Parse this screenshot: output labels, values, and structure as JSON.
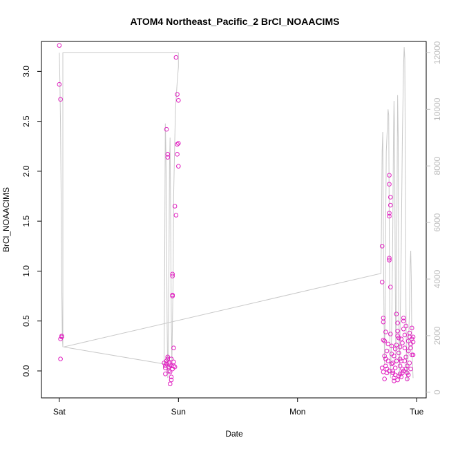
{
  "chart_data": {
    "type": "scatter",
    "title": "ATOM4 Northeast_Pacific_2 BrCl_NOAACIMS",
    "xlabel": "Date",
    "ylabel": "BrCl_NOAACIMS",
    "x_ticks": [
      {
        "day": 0,
        "label": "Sat"
      },
      {
        "day": 1,
        "label": "Sun"
      },
      {
        "day": 2,
        "label": "Mon"
      },
      {
        "day": 3,
        "label": "Tue"
      }
    ],
    "xlim_days": [
      -0.15,
      3.08
    ],
    "ylim": [
      -0.27,
      3.3
    ],
    "y_ticks": [
      0.0,
      0.5,
      1.0,
      1.5,
      2.0,
      2.5,
      3.0
    ],
    "y_tick_labels": [
      "0.0",
      "0.5",
      "1.0",
      "1.5",
      "2.0",
      "2.5",
      "3.0"
    ],
    "y2lim": [
      -200,
      12400
    ],
    "y2_ticks": [
      0,
      2000,
      4000,
      6000,
      8000,
      10000,
      12000
    ],
    "y2_tick_labels": [
      "0",
      "2000",
      "4000",
      "6000",
      "8000",
      "10000",
      "12000"
    ],
    "grid": false,
    "colors": {
      "points": "#e020c0",
      "altitude_line": "#c8c8c8",
      "right_axis": "#bdbdbd"
    },
    "series": [
      {
        "points": [
          [
            0.0,
            3.26
          ],
          [
            0.0,
            2.87
          ],
          [
            0.01,
            2.72
          ],
          [
            0.02,
            0.35
          ],
          [
            0.02,
            0.34
          ],
          [
            0.01,
            0.32
          ],
          [
            0.01,
            0.12
          ],
          [
            0.9,
            2.42
          ],
          [
            0.91,
            2.17
          ],
          [
            0.91,
            2.14
          ],
          [
            0.88,
            0.08
          ],
          [
            0.89,
            0.05
          ],
          [
            0.89,
            0.03
          ],
          [
            0.9,
            0.07
          ],
          [
            0.9,
            0.1
          ],
          [
            0.91,
            0.12
          ],
          [
            0.91,
            0.14
          ],
          [
            0.92,
            0.0
          ],
          [
            0.92,
            0.04
          ],
          [
            0.93,
            0.06
          ],
          [
            0.93,
            -0.01
          ],
          [
            0.94,
            -0.06
          ],
          [
            0.94,
            -0.09
          ],
          [
            0.95,
            0.76
          ],
          [
            0.95,
            0.75
          ],
          [
            0.95,
            0.97
          ],
          [
            0.95,
            0.95
          ],
          [
            0.96,
            0.23
          ],
          [
            0.96,
            0.09
          ],
          [
            0.94,
            0.12
          ],
          [
            0.93,
            -0.13
          ],
          [
            0.95,
            0.02
          ],
          [
            0.96,
            0.05
          ],
          [
            0.97,
            1.65
          ],
          [
            0.98,
            1.56
          ],
          [
            0.98,
            3.14
          ],
          [
            0.99,
            2.77
          ],
          [
            0.99,
            2.17
          ],
          [
            0.99,
            2.27
          ],
          [
            1.0,
            2.28
          ],
          [
            1.0,
            2.71
          ],
          [
            1.0,
            2.05
          ],
          [
            0.97,
            0.04
          ],
          [
            0.89,
            -0.03
          ],
          [
            0.92,
            0.08
          ],
          [
            0.94,
            0.05
          ],
          [
            2.71,
            1.25
          ],
          [
            2.71,
            0.89
          ],
          [
            2.72,
            0.53
          ],
          [
            2.72,
            0.49
          ],
          [
            2.72,
            0.31
          ],
          [
            2.73,
            0.3
          ],
          [
            2.73,
            0.15
          ],
          [
            2.74,
            0.12
          ],
          [
            2.74,
            0.05
          ],
          [
            2.75,
            0.02
          ],
          [
            2.75,
            -0.02
          ],
          [
            2.74,
            0.39
          ],
          [
            2.76,
            0.27
          ],
          [
            2.76,
            0.1
          ],
          [
            2.77,
            0.0
          ],
          [
            2.71,
            0.03
          ],
          [
            2.72,
            -0.01
          ],
          [
            2.73,
            -0.08
          ],
          [
            2.75,
            0.2
          ],
          [
            2.77,
            1.96
          ],
          [
            2.77,
            1.87
          ],
          [
            2.78,
            1.74
          ],
          [
            2.78,
            1.66
          ],
          [
            2.77,
            1.58
          ],
          [
            2.77,
            1.55
          ],
          [
            2.77,
            1.13
          ],
          [
            2.77,
            1.11
          ],
          [
            2.78,
            0.84
          ],
          [
            2.78,
            0.37
          ],
          [
            2.79,
            0.25
          ],
          [
            2.79,
            0.17
          ],
          [
            2.8,
            0.08
          ],
          [
            2.8,
            -0.02
          ],
          [
            2.81,
            -0.07
          ],
          [
            2.81,
            -0.1
          ],
          [
            2.82,
            0.03
          ],
          [
            2.82,
            0.22
          ],
          [
            2.83,
            0.26
          ],
          [
            2.83,
            0.57
          ],
          [
            2.84,
            0.48
          ],
          [
            2.84,
            0.4
          ],
          [
            2.84,
            0.35
          ],
          [
            2.85,
            0.33
          ],
          [
            2.85,
            0.18
          ],
          [
            2.86,
            0.12
          ],
          [
            2.86,
            0.05
          ],
          [
            2.86,
            -0.03
          ],
          [
            2.87,
            -0.06
          ],
          [
            2.87,
            0.1
          ],
          [
            2.88,
            0.02
          ],
          [
            2.88,
            0.28
          ],
          [
            2.89,
            0.53
          ],
          [
            2.89,
            0.5
          ],
          [
            2.89,
            0.42
          ],
          [
            2.9,
            0.36
          ],
          [
            2.9,
            0.23
          ],
          [
            2.91,
            0.14
          ],
          [
            2.91,
            0.02
          ],
          [
            2.92,
            -0.02
          ],
          [
            2.92,
            0.05
          ],
          [
            2.93,
            0.2
          ],
          [
            2.93,
            0.3
          ],
          [
            2.94,
            0.38
          ],
          [
            2.94,
            0.34
          ],
          [
            2.95,
            0.27
          ],
          [
            2.95,
            0.23
          ],
          [
            2.96,
            0.16
          ],
          [
            2.96,
            0.43
          ],
          [
            2.97,
            0.34
          ],
          [
            2.97,
            0.29
          ],
          [
            2.97,
            0.16
          ],
          [
            2.93,
            -0.04
          ],
          [
            2.92,
            -0.08
          ],
          [
            2.94,
            0.08
          ],
          [
            2.8,
            0.0
          ],
          [
            2.81,
            0.15
          ],
          [
            2.83,
            0.1
          ],
          [
            2.85,
            -0.05
          ],
          [
            2.87,
            0.32
          ],
          [
            2.9,
            0.1
          ],
          [
            2.95,
            0.02
          ],
          [
            2.82,
            -0.04
          ],
          [
            2.84,
            -0.09
          ],
          [
            2.86,
            0.24
          ],
          [
            2.79,
            0.07
          ],
          [
            2.88,
            -0.02
          ],
          [
            2.91,
            0.45
          ],
          [
            2.96,
            0.32
          ],
          [
            2.89,
            0.0
          ]
        ]
      }
    ],
    "altitude_line": [
      [
        0.0,
        12000
      ],
      [
        0.005,
        11000
      ],
      [
        0.01,
        9500
      ],
      [
        0.015,
        7000
      ],
      [
        0.02,
        4000
      ],
      [
        0.025,
        2000
      ],
      [
        0.03,
        1600
      ],
      [
        0.03,
        12000
      ],
      [
        1.0,
        12000
      ],
      [
        1.0,
        11500
      ],
      [
        0.99,
        11000
      ],
      [
        0.975,
        10000
      ],
      [
        0.97,
        9000
      ],
      [
        0.96,
        7000
      ],
      [
        0.955,
        4000
      ],
      [
        0.95,
        2500
      ],
      [
        0.945,
        1000
      ],
      [
        0.94,
        2500
      ],
      [
        0.935,
        6000
      ],
      [
        0.93,
        9000
      ],
      [
        0.925,
        8000
      ],
      [
        0.92,
        4000
      ],
      [
        0.915,
        1500
      ],
      [
        0.91,
        500
      ],
      [
        0.905,
        2500
      ],
      [
        0.9,
        6000
      ],
      [
        0.895,
        8500
      ],
      [
        0.89,
        9500
      ],
      [
        0.885,
        5000
      ],
      [
        0.88,
        1000
      ],
      [
        0.035,
        1600
      ],
      [
        2.7,
        4200
      ],
      [
        2.705,
        6000
      ],
      [
        2.71,
        8500
      ],
      [
        2.715,
        9200
      ],
      [
        2.72,
        6000
      ],
      [
        2.725,
        3000
      ],
      [
        2.73,
        1000
      ],
      [
        2.735,
        2500
      ],
      [
        2.74,
        6000
      ],
      [
        2.745,
        8500
      ],
      [
        2.75,
        9000
      ],
      [
        2.755,
        9500
      ],
      [
        2.76,
        10000
      ],
      [
        2.765,
        9800
      ],
      [
        2.77,
        6000
      ],
      [
        2.775,
        2000
      ],
      [
        2.78,
        500
      ],
      [
        2.79,
        2000
      ],
      [
        2.8,
        6000
      ],
      [
        2.805,
        9000
      ],
      [
        2.81,
        10300
      ],
      [
        2.815,
        9000
      ],
      [
        2.82,
        4000
      ],
      [
        2.825,
        1000
      ],
      [
        2.83,
        3000
      ],
      [
        2.835,
        7000
      ],
      [
        2.84,
        10500
      ],
      [
        2.845,
        9000
      ],
      [
        2.85,
        3000
      ],
      [
        2.855,
        600
      ],
      [
        2.86,
        2000
      ],
      [
        2.87,
        5000
      ],
      [
        2.88,
        9000
      ],
      [
        2.89,
        11500
      ],
      [
        2.895,
        12200
      ],
      [
        2.9,
        11800
      ],
      [
        2.905,
        8000
      ],
      [
        2.91,
        3000
      ],
      [
        2.915,
        800
      ],
      [
        2.92,
        400
      ],
      [
        2.93,
        1500
      ],
      [
        2.94,
        3000
      ],
      [
        2.945,
        4500
      ],
      [
        2.95,
        5000
      ],
      [
        2.955,
        4000
      ],
      [
        2.96,
        1500
      ],
      [
        2.97,
        500
      ]
    ]
  }
}
